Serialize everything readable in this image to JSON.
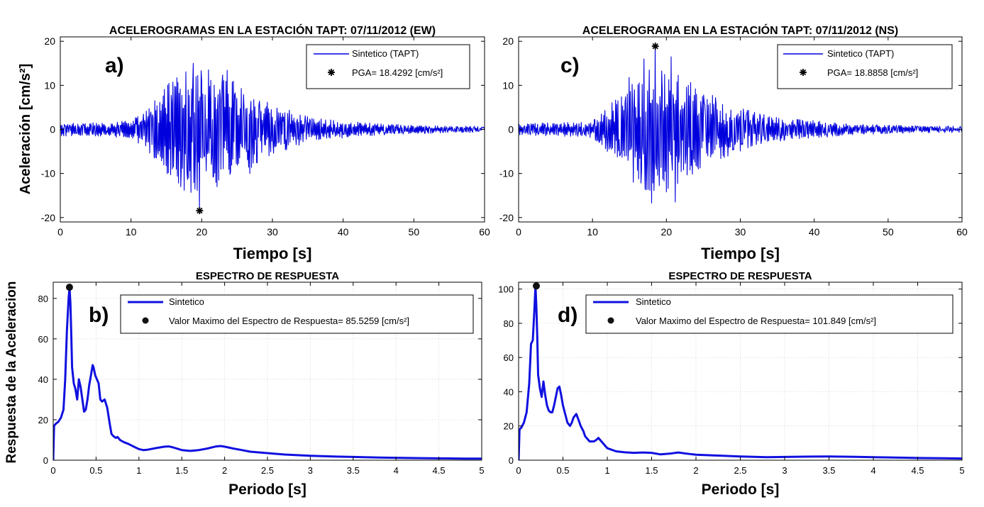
{
  "chart_data": [
    {
      "id": "a",
      "type": "line",
      "title": "ACELEROGRAMAS EN LA ESTACIÓN TAPT: 07/11/2012 (EW)",
      "panel_label": "a)",
      "xlabel": "Tiempo [s]",
      "ylabel": "Aceleración [cm/s²]",
      "xlim": [
        0,
        60
      ],
      "ylim": [
        -21,
        21
      ],
      "xticks": [
        0,
        10,
        20,
        30,
        40,
        50,
        60
      ],
      "yticks": [
        -20,
        -10,
        0,
        10,
        20
      ],
      "legend_placement": "top-right",
      "grid": false,
      "line_color": "#0000dd",
      "series": [
        {
          "name": "Sintetico (TAPT)",
          "style": "thin-line",
          "envelope": {
            "t": [
              0,
              5,
              10,
              12,
              14,
              16,
              18,
              19.5,
              21,
              23,
              25,
              27,
              30,
              33,
              36,
              40,
              45,
              50,
              55,
              60
            ],
            "amp": [
              1.5,
              1.5,
              2.0,
              4.5,
              8.0,
              12.0,
              14.0,
              16.0,
              12.0,
              12.5,
              11.0,
              9.0,
              6.0,
              4.0,
              2.5,
              2.0,
              1.3,
              1.0,
              0.8,
              0.7
            ]
          },
          "peaks": [
            {
              "x": 16.2,
              "y": 9.8
            },
            {
              "x": 17.5,
              "y": -13.8
            },
            {
              "x": 19.2,
              "y": 12.0
            },
            {
              "x": 19.7,
              "y": -18.4
            },
            {
              "x": 21.0,
              "y": 13.5
            },
            {
              "x": 22.2,
              "y": -13.0
            },
            {
              "x": 23.6,
              "y": 13.4
            },
            {
              "x": 25.6,
              "y": 9.3
            },
            {
              "x": 26.8,
              "y": -10.0
            }
          ]
        },
        {
          "name": "PGA= 18.4292 [cm/s²]",
          "style": "asterisk-marker",
          "x": [
            19.7
          ],
          "y": [
            -18.4292
          ]
        }
      ]
    },
    {
      "id": "c",
      "type": "line",
      "title": "ACELEROGRAMA EN LA ESTACIÓN TAPT: 07/11/2012 (NS)",
      "panel_label": "c)",
      "xlabel": "Tiempo [s]",
      "ylabel": "",
      "xlim": [
        0,
        60
      ],
      "ylim": [
        -21,
        21
      ],
      "xticks": [
        0,
        10,
        20,
        30,
        40,
        50,
        60
      ],
      "yticks": [
        -20,
        -10,
        0,
        10,
        20
      ],
      "legend_placement": "top-right",
      "grid": false,
      "line_color": "#0000dd",
      "series": [
        {
          "name": "Sintetico (TAPT)",
          "style": "thin-line",
          "envelope": {
            "t": [
              0,
              5,
              10,
              12,
              14,
              16,
              18,
              19.5,
              21,
              23,
              25,
              27,
              30,
              33,
              36,
              40,
              45,
              50,
              55,
              60
            ],
            "amp": [
              1.5,
              1.5,
              2.0,
              5.0,
              9.0,
              12.0,
              15.0,
              15.0,
              13.0,
              11.0,
              9.0,
              7.0,
              5.0,
              3.5,
              2.5,
              2.0,
              1.3,
              1.0,
              0.8,
              0.7
            ]
          },
          "peaks": [
            {
              "x": 15.0,
              "y": 11.8
            },
            {
              "x": 15.5,
              "y": -12.0
            },
            {
              "x": 17.0,
              "y": 16.0
            },
            {
              "x": 18.0,
              "y": -16.7
            },
            {
              "x": 18.5,
              "y": 18.9
            },
            {
              "x": 20.0,
              "y": -14.2
            },
            {
              "x": 20.6,
              "y": 16.5
            },
            {
              "x": 21.2,
              "y": -16.5
            },
            {
              "x": 23.0,
              "y": 10.0
            },
            {
              "x": 24.3,
              "y": -9.0
            }
          ]
        },
        {
          "name": "PGA= 18.8858 [cm/s²]",
          "style": "asterisk-marker",
          "x": [
            18.5
          ],
          "y": [
            18.8858
          ]
        }
      ]
    },
    {
      "id": "b",
      "type": "line",
      "title": "ESPECTRO DE RESPUESTA",
      "panel_label": "b)",
      "xlabel": "Periodo [s]",
      "ylabel": "Respuesta de la Aceleracion",
      "xlim": [
        0,
        5
      ],
      "ylim": [
        0,
        88
      ],
      "xticks": [
        0,
        0.5,
        1,
        1.5,
        2,
        2.5,
        3,
        3.5,
        4,
        4.5,
        5
      ],
      "yticks": [
        0,
        20,
        40,
        60,
        80
      ],
      "legend_placement": "top-right",
      "grid": true,
      "line_color": "#1010e0",
      "series": [
        {
          "name": "Sintetico",
          "style": "thick-line",
          "x": [
            0.0,
            0.01,
            0.03,
            0.06,
            0.09,
            0.12,
            0.14,
            0.16,
            0.18,
            0.19,
            0.2,
            0.21,
            0.22,
            0.24,
            0.26,
            0.28,
            0.3,
            0.32,
            0.34,
            0.36,
            0.38,
            0.4,
            0.42,
            0.44,
            0.46,
            0.47,
            0.49,
            0.51,
            0.53,
            0.55,
            0.57,
            0.6,
            0.63,
            0.66,
            0.68,
            0.7,
            0.73,
            0.75,
            0.78,
            0.82,
            0.88,
            0.95,
            1.0,
            1.05,
            1.1,
            1.2,
            1.3,
            1.35,
            1.4,
            1.5,
            1.6,
            1.7,
            1.8,
            1.9,
            1.95,
            2.0,
            2.1,
            2.2,
            2.3,
            2.5,
            2.7,
            3.0,
            3.3,
            3.5,
            3.8,
            4.0,
            4.3,
            4.5,
            4.8,
            5.0
          ],
          "y": [
            0,
            17,
            18,
            19,
            21,
            25,
            40,
            64,
            80,
            85.5,
            78,
            63,
            46,
            38,
            35,
            30,
            40,
            36,
            30,
            24,
            25,
            30,
            37,
            42,
            47,
            46,
            42,
            40,
            38,
            30,
            29,
            30,
            26,
            18,
            13,
            12,
            11,
            11.5,
            10,
            9,
            8,
            6.5,
            5.5,
            5,
            5.2,
            6,
            6.7,
            6.8,
            6.3,
            5,
            4.6,
            5,
            5.8,
            6.8,
            7,
            6.7,
            5.8,
            5,
            4.2,
            3.5,
            2.8,
            2.2,
            1.8,
            1.6,
            1.3,
            1.2,
            1.0,
            0.9,
            0.8,
            0.8
          ]
        },
        {
          "name": "Valor Maximo del Espectro de Respuesta= 85.5259 [cm/s²]",
          "style": "filled-dot-marker",
          "x": [
            0.19
          ],
          "y": [
            85.5259
          ]
        }
      ]
    },
    {
      "id": "d",
      "type": "line",
      "title": "ESPECTRO DE RESPUESTA",
      "panel_label": "d)",
      "xlabel": "Periodo [s]",
      "ylabel": "",
      "xlim": [
        0,
        5
      ],
      "ylim": [
        0,
        104
      ],
      "xticks": [
        0,
        0.5,
        1,
        1.5,
        2,
        2.5,
        3,
        3.5,
        4,
        4.5,
        5
      ],
      "yticks": [
        0,
        20,
        40,
        60,
        80,
        100
      ],
      "legend_placement": "top-right",
      "grid": true,
      "line_color": "#1010e0",
      "series": [
        {
          "name": "Sintetico",
          "style": "thick-line",
          "x": [
            0.0,
            0.01,
            0.03,
            0.06,
            0.09,
            0.12,
            0.14,
            0.16,
            0.18,
            0.19,
            0.2,
            0.21,
            0.22,
            0.24,
            0.26,
            0.28,
            0.3,
            0.32,
            0.34,
            0.36,
            0.38,
            0.4,
            0.42,
            0.44,
            0.46,
            0.48,
            0.5,
            0.52,
            0.55,
            0.58,
            0.6,
            0.62,
            0.65,
            0.68,
            0.7,
            0.73,
            0.75,
            0.8,
            0.85,
            0.88,
            0.9,
            0.95,
            1.0,
            1.1,
            1.2,
            1.3,
            1.4,
            1.5,
            1.6,
            1.7,
            1.8,
            1.9,
            2.0,
            2.2,
            2.5,
            2.8,
            3.0,
            3.3,
            3.5,
            3.8,
            4.0,
            4.3,
            4.5,
            4.8,
            5.0
          ],
          "y": [
            0,
            18,
            19,
            22,
            28,
            45,
            68,
            70,
            90,
            101.8,
            90,
            72,
            50,
            42,
            37,
            46,
            38,
            32,
            29,
            28,
            28,
            32,
            37,
            42,
            43,
            38,
            32,
            28,
            22,
            20,
            22,
            25,
            27,
            23,
            20,
            17,
            14,
            11,
            11,
            12,
            13,
            10,
            7,
            5.2,
            4.6,
            4.3,
            4.5,
            4.3,
            3.4,
            3.8,
            4.5,
            3.8,
            3.2,
            2.8,
            2.2,
            1.8,
            1.9,
            2.1,
            2.2,
            2.0,
            1.8,
            1.5,
            1.3,
            1.1,
            1.0
          ]
        },
        {
          "name": "Valor Maximo del Espectro de Respuesta= 101.849 [cm/s²]",
          "style": "filled-dot-marker",
          "x": [
            0.2
          ],
          "y": [
            101.849
          ]
        }
      ]
    }
  ]
}
